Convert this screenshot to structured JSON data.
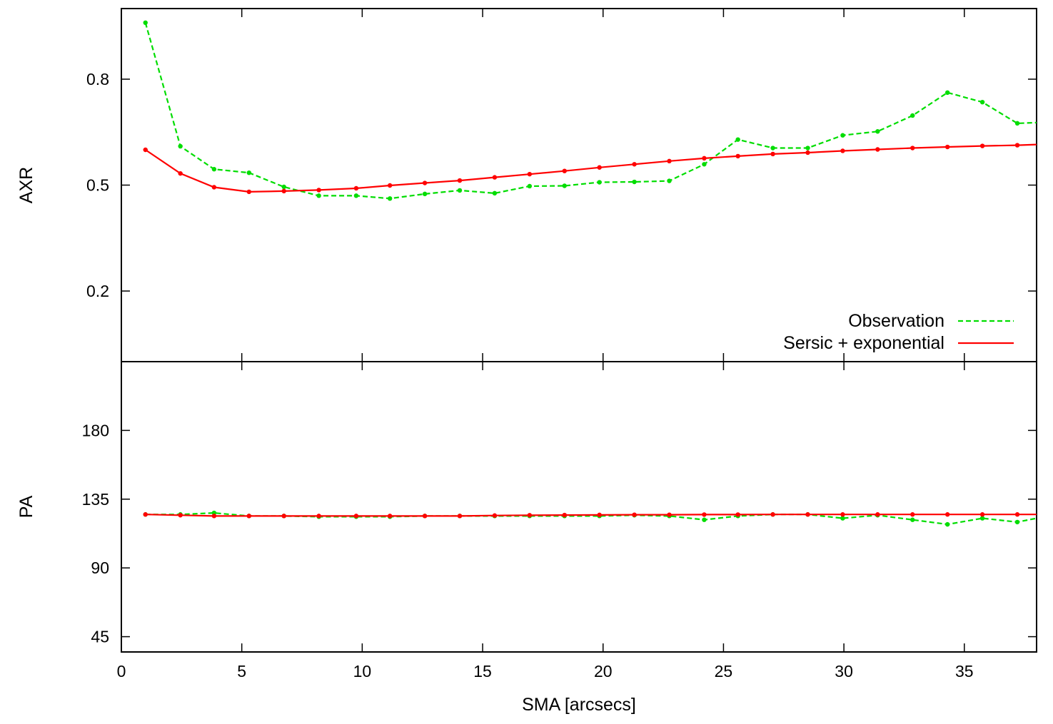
{
  "chart_data": [
    {
      "type": "line",
      "panel": "top",
      "ylabel": "AXR",
      "xlim": [
        0,
        38
      ],
      "ylim": [
        0.0,
        1.0
      ],
      "xticks": [
        0,
        5,
        10,
        15,
        20,
        25,
        30,
        35
      ],
      "yticks": [
        0.2,
        0.5,
        0.8
      ],
      "ytick_labels": [
        "0.2",
        "0.5",
        "0.8"
      ],
      "grid": false,
      "legend_position": "bottom-right",
      "series": [
        {
          "name": "Observation",
          "color": "#00dd00",
          "style": "dashed",
          "x": [
            1.0,
            2.45,
            3.85,
            5.3,
            6.75,
            8.2,
            9.75,
            11.15,
            12.6,
            14.05,
            15.5,
            16.95,
            18.4,
            19.85,
            21.3,
            22.75,
            24.2,
            25.6,
            27.05,
            28.5,
            29.95,
            31.4,
            32.85,
            34.3,
            35.75,
            37.2,
            38.0
          ],
          "y": [
            0.96,
            0.61,
            0.545,
            0.535,
            0.495,
            0.47,
            0.47,
            0.462,
            0.475,
            0.485,
            0.477,
            0.497,
            0.498,
            0.508,
            0.509,
            0.512,
            0.559,
            0.629,
            0.605,
            0.605,
            0.641,
            0.652,
            0.697,
            0.762,
            0.735,
            0.675,
            0.677
          ]
        },
        {
          "name": "Sersic + exponential",
          "color": "#ff0000",
          "style": "solid",
          "x": [
            1.0,
            2.45,
            3.85,
            5.3,
            6.75,
            8.2,
            9.75,
            11.15,
            12.6,
            14.05,
            15.5,
            16.95,
            18.4,
            19.85,
            21.3,
            22.75,
            24.2,
            25.6,
            27.05,
            28.5,
            29.95,
            31.4,
            32.85,
            34.3,
            35.75,
            37.2,
            38.0
          ],
          "y": [
            0.6,
            0.533,
            0.494,
            0.481,
            0.483,
            0.486,
            0.491,
            0.499,
            0.506,
            0.513,
            0.522,
            0.531,
            0.54,
            0.55,
            0.559,
            0.568,
            0.576,
            0.582,
            0.588,
            0.592,
            0.597,
            0.601,
            0.605,
            0.608,
            0.611,
            0.613,
            0.615
          ]
        }
      ]
    },
    {
      "type": "line",
      "panel": "bottom",
      "xlabel": "SMA [arcsecs]",
      "ylabel": "PA",
      "xlim": [
        0,
        38
      ],
      "ylim": [
        35,
        225
      ],
      "xticks": [
        0,
        5,
        10,
        15,
        20,
        25,
        30,
        35
      ],
      "xtick_labels": [
        "0",
        "5",
        "10",
        "15",
        "20",
        "25",
        "30",
        "35"
      ],
      "yticks": [
        45,
        90,
        135,
        180
      ],
      "ytick_labels": [
        "45",
        "90",
        "135",
        "180"
      ],
      "grid": false,
      "series": [
        {
          "name": "Observation",
          "color": "#00dd00",
          "style": "dashed",
          "x": [
            1.0,
            2.45,
            3.85,
            5.3,
            6.75,
            8.2,
            9.75,
            11.15,
            12.6,
            14.05,
            15.5,
            16.95,
            18.4,
            19.85,
            21.3,
            22.75,
            24.2,
            25.6,
            27.05,
            28.5,
            29.95,
            31.4,
            32.85,
            34.3,
            35.75,
            37.2,
            38.0
          ],
          "y": [
            125.0,
            125.0,
            126.0,
            124.0,
            124.0,
            123.5,
            123.5,
            123.5,
            124.0,
            124.0,
            124.0,
            124.0,
            124.0,
            124.0,
            124.5,
            124.0,
            121.5,
            124.0,
            125.0,
            125.0,
            122.5,
            124.5,
            121.5,
            118.5,
            122.5,
            120.0,
            122.5
          ]
        },
        {
          "name": "Sersic + exponential",
          "color": "#ff0000",
          "style": "solid",
          "x": [
            1.0,
            2.45,
            3.85,
            5.3,
            6.75,
            8.2,
            9.75,
            11.15,
            12.6,
            14.05,
            15.5,
            16.95,
            18.4,
            19.85,
            21.3,
            22.75,
            24.2,
            25.6,
            27.05,
            28.5,
            29.95,
            31.4,
            32.85,
            34.3,
            35.75,
            37.2,
            38.0
          ],
          "y": [
            125.0,
            124.5,
            124.0,
            124.0,
            124.0,
            124.0,
            124.0,
            124.0,
            124.0,
            124.0,
            124.3,
            124.5,
            124.6,
            124.7,
            124.8,
            124.8,
            124.9,
            124.9,
            125.0,
            125.0,
            125.0,
            125.0,
            125.0,
            125.0,
            125.0,
            125.0,
            125.0
          ]
        }
      ]
    }
  ]
}
